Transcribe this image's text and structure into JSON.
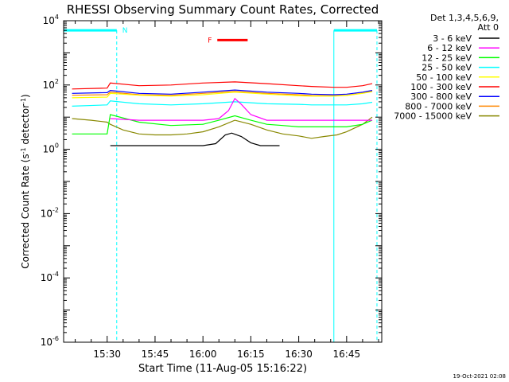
{
  "chart_data": {
    "type": "line",
    "title": "RHESSI Observing Summary Count Rates, Corrected",
    "xlabel": "Start Time (11-Aug-05 15:16:22)",
    "ylabel_parts": [
      "Corrected Count Rate (s",
      "-1",
      " detector",
      "-1",
      ")"
    ],
    "y_scale": "log",
    "ylim": [
      1e-06,
      10000
    ],
    "y_ticks": [
      {
        "base": "10",
        "exp": "-6",
        "value": 1e-06
      },
      {
        "base": "10",
        "exp": "-4",
        "value": 0.0001
      },
      {
        "base": "10",
        "exp": "-2",
        "value": 0.01
      },
      {
        "base": "10",
        "exp": "0",
        "value": 1
      },
      {
        "base": "10",
        "exp": "2",
        "value": 100
      },
      {
        "base": "10",
        "exp": "4",
        "value": 10000
      }
    ],
    "xlim": [
      "15:16:22",
      "16:56:00"
    ],
    "x_ticks": [
      "15:30",
      "15:45",
      "16:00",
      "16:15",
      "16:30",
      "16:45"
    ],
    "legend_position": "top-right",
    "legend_header": [
      "Det 1,3,4,5,6,9,",
      "Att 0"
    ],
    "series": [
      {
        "name": "3 - 6 keV",
        "color": "#000000",
        "x": [
          "15:31",
          "15:35",
          "15:40",
          "15:45",
          "15:50",
          "15:55",
          "16:00",
          "16:04",
          "16:07",
          "16:09",
          "16:12",
          "16:15",
          "16:18",
          "16:21",
          "16:24"
        ],
        "y": [
          1.3,
          1.3,
          1.3,
          1.3,
          1.3,
          1.3,
          1.3,
          1.5,
          2.8,
          3.2,
          2.5,
          1.6,
          1.3,
          1.3,
          1.3
        ]
      },
      {
        "name": "6 - 12 keV",
        "color": "#ff00ff",
        "x": [
          "15:31",
          "15:40",
          "15:50",
          "16:00",
          "16:05",
          "16:08",
          "16:10",
          "16:12",
          "16:15",
          "16:20",
          "16:30",
          "16:34",
          "16:41",
          "16:45",
          "16:50",
          "16:53"
        ],
        "y": [
          9,
          8,
          8,
          8,
          9,
          16,
          38,
          25,
          12,
          8,
          8,
          8,
          8,
          8,
          8,
          8
        ]
      },
      {
        "name": "12 - 25 keV",
        "color": "#00ff00",
        "x": [
          "15:19",
          "15:30",
          "15:31",
          "15:40",
          "15:50",
          "16:00",
          "16:05",
          "16:10",
          "16:15",
          "16:20",
          "16:25",
          "16:30",
          "16:34",
          "16:41",
          "16:45",
          "16:50",
          "16:53"
        ],
        "y": [
          3,
          3,
          12,
          7,
          5.5,
          6,
          8,
          11,
          8,
          6,
          5.5,
          5,
          5,
          5,
          5,
          6,
          8
        ]
      },
      {
        "name": "25 - 50 keV",
        "color": "#00ffff",
        "x": [
          "15:19",
          "15:30",
          "15:31",
          "15:40",
          "15:50",
          "16:00",
          "16:05",
          "16:10",
          "16:15",
          "16:20",
          "16:30",
          "16:34",
          "16:41",
          "16:45",
          "16:50",
          "16:53"
        ],
        "y": [
          22,
          24,
          32,
          26,
          24,
          26,
          28,
          30,
          28,
          26,
          25,
          24,
          24,
          24,
          26,
          29
        ]
      },
      {
        "name": "50 - 100 keV",
        "color": "#ffff00",
        "x": [
          "15:19",
          "15:30",
          "15:31",
          "15:40",
          "15:50",
          "16:00",
          "16:10",
          "16:20",
          "16:30",
          "16:34",
          "16:41",
          "16:45",
          "16:50",
          "16:53"
        ],
        "y": [
          40,
          42,
          55,
          48,
          45,
          50,
          60,
          52,
          46,
          45,
          45,
          47,
          55,
          62
        ]
      },
      {
        "name": "100 - 300 keV",
        "color": "#ff0000",
        "x": [
          "15:19",
          "15:30",
          "15:31",
          "15:40",
          "15:50",
          "16:00",
          "16:10",
          "16:20",
          "16:30",
          "16:34",
          "16:41",
          "16:45",
          "16:50",
          "16:53"
        ],
        "y": [
          75,
          80,
          115,
          95,
          100,
          115,
          125,
          110,
          95,
          90,
          85,
          85,
          95,
          110
        ]
      },
      {
        "name": "300 - 800 keV",
        "color": "#0000ff",
        "x": [
          "15:19",
          "15:30",
          "15:31",
          "15:40",
          "15:50",
          "16:00",
          "16:10",
          "16:20",
          "16:30",
          "16:34",
          "16:41",
          "16:45",
          "16:50",
          "16:53"
        ],
        "y": [
          55,
          58,
          68,
          55,
          52,
          60,
          70,
          60,
          55,
          52,
          50,
          52,
          60,
          68
        ]
      },
      {
        "name": "800 - 7000 keV",
        "color": "#ff8800",
        "x": [
          "15:19",
          "15:30",
          "15:31",
          "15:40",
          "15:50",
          "16:00",
          "16:10",
          "16:20",
          "16:30",
          "16:34",
          "16:41",
          "16:45",
          "16:50",
          "16:53"
        ],
        "y": [
          48,
          50,
          60,
          50,
          48,
          55,
          63,
          55,
          50,
          47,
          46,
          48,
          56,
          64
        ]
      },
      {
        "name": "7000 - 15000 keV",
        "color": "#888800",
        "x": [
          "15:19",
          "15:25",
          "15:30",
          "15:31",
          "15:35",
          "15:40",
          "15:45",
          "15:50",
          "15:55",
          "16:00",
          "16:05",
          "16:10",
          "16:15",
          "16:20",
          "16:25",
          "16:30",
          "16:34",
          "16:38",
          "16:42",
          "16:45",
          "16:50",
          "16:53"
        ],
        "y": [
          9,
          8,
          7,
          6,
          4,
          3,
          2.8,
          2.8,
          3,
          3.5,
          5,
          8,
          6,
          4,
          3,
          2.6,
          2.2,
          2.5,
          2.8,
          3.5,
          6,
          10
        ]
      }
    ],
    "night_bars": {
      "label": "N",
      "color": "#00ffff",
      "intervals": [
        [
          "15:16:22",
          "15:33:00"
        ],
        [
          "16:41:00",
          "16:54:30"
        ]
      ],
      "bar_level": 5000
    },
    "flare_bar": {
      "label": "F",
      "color": "#ff0000",
      "interval": [
        "16:04:30",
        "16:14:00"
      ],
      "bar_level": 2500
    },
    "saa_lines": {
      "color": "#00ffff",
      "times": [
        "15:33:00",
        "16:54:30"
      ]
    }
  },
  "timestamp": "19-Oct-2021 02:08"
}
